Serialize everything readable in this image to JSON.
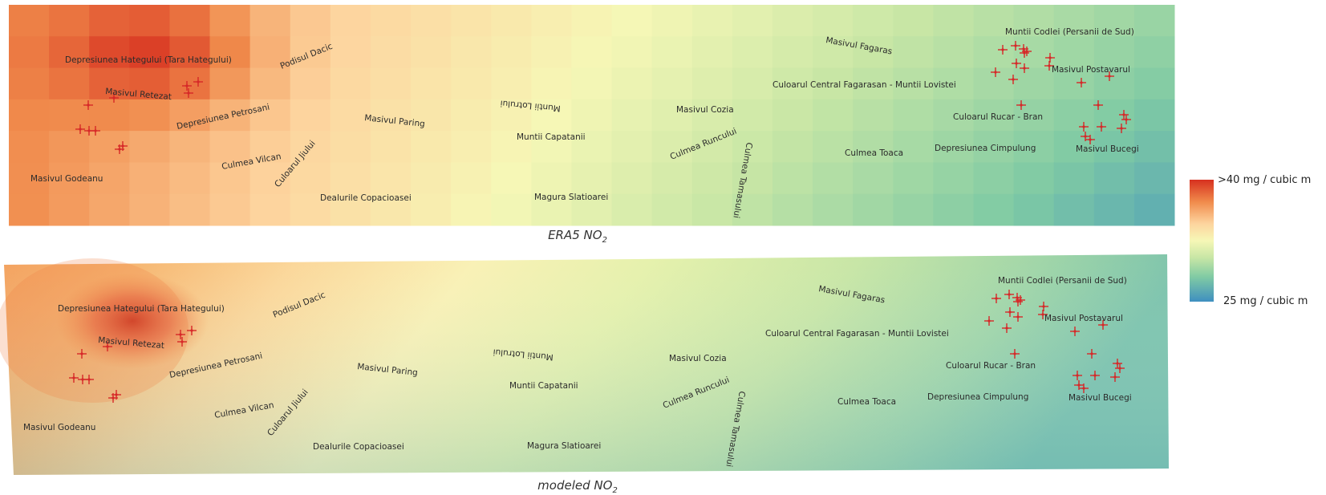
{
  "panels": [
    {
      "caption_main": "ERA5 NO",
      "caption_sub": "2",
      "labels": [
        {
          "text": "Depresiunea Hategului (Tara Hategului)",
          "rot": 0
        },
        {
          "text": "Podisul Dacic",
          "rot": -22
        },
        {
          "text": "Masivul Retezat",
          "rot": 5
        },
        {
          "text": "Depresiunea Petrosani",
          "rot": -12
        },
        {
          "text": "Masivul Paring",
          "rot": 6
        },
        {
          "text": "Culmea Vilcan",
          "rot": -10
        },
        {
          "text": "Culoarul Jiului",
          "rot": -50
        },
        {
          "text": "Masivul Godeanu",
          "rot": 0
        },
        {
          "text": "Dealurile Copacioasei",
          "rot": 0
        },
        {
          "text": "Muntii Lotrului",
          "rot": 185
        },
        {
          "text": "Muntii Capatanii",
          "rot": 0
        },
        {
          "text": "Magura Slatioarei",
          "rot": 0
        },
        {
          "text": "Masivul Cozia",
          "rot": 0
        },
        {
          "text": "Culmea Runcului",
          "rot": -22
        },
        {
          "text": "Culmea Tamasului",
          "rot": 100
        },
        {
          "text": "Masivul Fagaras",
          "rot": 10
        },
        {
          "text": "Culoarul Central Fagarasan - Muntii Lovistei",
          "rot": 0
        },
        {
          "text": "Culmea Toaca",
          "rot": 0
        },
        {
          "text": "Depresiunea Cimpulung",
          "rot": 0
        },
        {
          "text": "Muntii Codlei (Persanii de Sud)",
          "rot": 0
        },
        {
          "text": "Masivul Postavarul",
          "rot": 0
        },
        {
          "text": "Culoarul Rucar - Bran",
          "rot": 0
        },
        {
          "text": "Masivul Bucegi",
          "rot": 0
        }
      ]
    },
    {
      "caption_main": "modeled NO",
      "caption_sub": "2",
      "labels": [
        {
          "text": "Depresiunea Hategului (Tara Hategului)",
          "rot": 0
        },
        {
          "text": "Podisul Dacic",
          "rot": -22
        },
        {
          "text": "Masivul Retezat",
          "rot": 5
        },
        {
          "text": "Depresiunea Petrosani",
          "rot": -12
        },
        {
          "text": "Masivul Paring",
          "rot": 6
        },
        {
          "text": "Culmea Vilcan",
          "rot": -10
        },
        {
          "text": "Culoarul Jiului",
          "rot": -50
        },
        {
          "text": "Masivul Godeanu",
          "rot": 0
        },
        {
          "text": "Dealurile Copacioasei",
          "rot": 0
        },
        {
          "text": "Muntii Lotrului",
          "rot": 185
        },
        {
          "text": "Muntii Capatanii",
          "rot": 0
        },
        {
          "text": "Magura Slatioarei",
          "rot": 0
        },
        {
          "text": "Masivul Cozia",
          "rot": 0
        },
        {
          "text": "Culmea Runcului",
          "rot": -22
        },
        {
          "text": "Culmea Tamasului",
          "rot": 100
        },
        {
          "text": "Masivul Fagaras",
          "rot": 10
        },
        {
          "text": "Culoarul Central Fagarasan - Muntii Lovistei",
          "rot": 0
        },
        {
          "text": "Culmea Toaca",
          "rot": 0
        },
        {
          "text": "Depresiunea Cimpulung",
          "rot": 0
        },
        {
          "text": "Muntii Codlei (Persanii de Sud)",
          "rot": 0
        },
        {
          "text": "Masivul Postavarul",
          "rot": 0
        },
        {
          "text": "Culoarul Rucar - Bran",
          "rot": 0
        },
        {
          "text": "Masivul Bucegi",
          "rot": 0
        }
      ]
    }
  ],
  "legend": {
    "max_label": ">40 mg / cubic m",
    "min_label": "25 mg / cubic m",
    "colors": [
      "#d7301f",
      "#f08a4b",
      "#fdd49e",
      "#f6f7b6",
      "#c7e6a5",
      "#7fcaa4",
      "#3f8fc0"
    ]
  },
  "marker_color": "#d62828"
}
